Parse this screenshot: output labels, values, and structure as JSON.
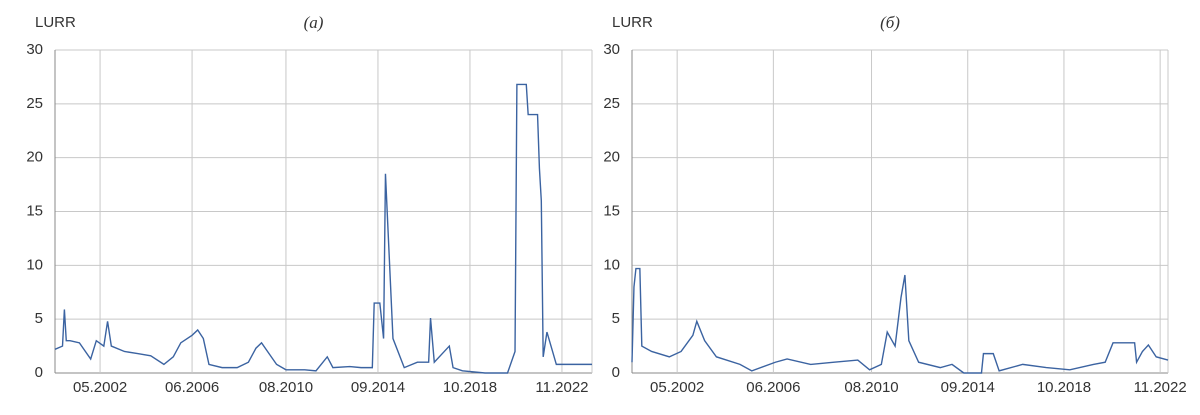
{
  "chart_data": [
    {
      "type": "line",
      "title": "(а)",
      "ylabel": "LURR",
      "color": "#3b63a1",
      "grid": true,
      "x": [
        "05.2000",
        "09.2000",
        "10.2000",
        "11.2000",
        "01.2001",
        "06.2001",
        "12.2001",
        "03.2002",
        "07.2002",
        "09.2002",
        "11.2002",
        "06.2003",
        "01.2004",
        "08.2004",
        "03.2005",
        "08.2005",
        "12.2005",
        "06.2006",
        "09.2006",
        "12.2006",
        "03.2007",
        "10.2007",
        "06.2008",
        "12.2008",
        "04.2009",
        "07.2009",
        "11.2009",
        "03.2010",
        "08.2010",
        "06.2011",
        "12.2011",
        "06.2012",
        "09.2012",
        "06.2013",
        "12.2013",
        "06.2014",
        "07.2014",
        "10.2014",
        "12.2014",
        "01.2015",
        "05.2015",
        "11.2015",
        "06.2016",
        "12.2016",
        "01.2017",
        "03.2017",
        "11.2017",
        "01.2018",
        "06.2018",
        "06.2019",
        "06.2020",
        "10.2020",
        "11.2020",
        "04.2021",
        "05.2021",
        "10.2021",
        "11.2021",
        "12.2021",
        "01.2022",
        "03.2022",
        "06.2022",
        "08.2022",
        "03.2024"
      ],
      "values": [
        2.2,
        2.5,
        5.9,
        3.0,
        3.0,
        2.8,
        1.3,
        3.0,
        2.5,
        4.8,
        2.5,
        2.0,
        1.8,
        1.6,
        0.8,
        1.5,
        2.8,
        3.5,
        4.0,
        3.2,
        0.8,
        0.5,
        0.5,
        1.0,
        2.3,
        2.8,
        1.8,
        0.8,
        0.3,
        0.3,
        0.2,
        1.5,
        0.5,
        0.6,
        0.5,
        0.5,
        6.5,
        6.5,
        3.2,
        18.5,
        3.2,
        0.5,
        1.0,
        1.0,
        5.1,
        1.0,
        2.5,
        0.5,
        0.2,
        0.0,
        0.0,
        2.0,
        26.8,
        26.8,
        24.0,
        24.0,
        19.0,
        16.0,
        1.5,
        3.8,
        2.0,
        0.8,
        0.8
      ],
      "xlim": [
        "05.2000",
        "03.2024"
      ],
      "xticks": [
        "05.2002",
        "06.2006",
        "08.2010",
        "09.2014",
        "10.2018",
        "11.2022"
      ],
      "ylim": [
        0,
        30
      ],
      "yticks": [
        0,
        5,
        10,
        15,
        20,
        25,
        30
      ]
    },
    {
      "type": "line",
      "title": "(б)",
      "ylabel": "LURR",
      "color": "#3b63a1",
      "grid": true,
      "x": [
        "06.2000",
        "07.2000",
        "08.2000",
        "10.2000",
        "11.2000",
        "04.2001",
        "01.2002",
        "07.2002",
        "01.2003",
        "03.2003",
        "07.2003",
        "01.2004",
        "01.2005",
        "07.2005",
        "07.2006",
        "01.2007",
        "01.2008",
        "01.2009",
        "01.2010",
        "07.2010",
        "01.2011",
        "04.2011",
        "08.2011",
        "11.2011",
        "01.2012",
        "03.2012",
        "08.2012",
        "07.2013",
        "01.2014",
        "07.2014",
        "04.2015",
        "05.2015",
        "10.2015",
        "01.2016",
        "01.2017",
        "01.2018",
        "01.2019",
        "01.2020",
        "07.2020",
        "11.2020",
        "10.2021",
        "11.2021",
        "02.2022",
        "05.2022",
        "09.2022",
        "03.2023"
      ],
      "values": [
        1.0,
        8.0,
        9.7,
        9.7,
        2.5,
        2.0,
        1.5,
        2.0,
        3.5,
        4.8,
        3.0,
        1.5,
        0.8,
        0.2,
        1.0,
        1.3,
        0.8,
        1.0,
        1.2,
        0.3,
        0.8,
        3.8,
        2.5,
        7.0,
        9.1,
        3.0,
        1.0,
        0.5,
        0.8,
        0.0,
        0.0,
        1.8,
        1.8,
        0.2,
        0.8,
        0.5,
        0.3,
        0.8,
        1.0,
        2.8,
        2.8,
        1.0,
        2.0,
        2.6,
        1.5,
        1.2
      ],
      "xlim": [
        "06.2000",
        "03.2023"
      ],
      "xticks": [
        "05.2002",
        "06.2006",
        "08.2010",
        "09.2014",
        "10.2018",
        "11.2022"
      ],
      "ylim": [
        0,
        30
      ],
      "yticks": [
        0,
        5,
        10,
        15,
        20,
        25,
        30
      ]
    }
  ]
}
